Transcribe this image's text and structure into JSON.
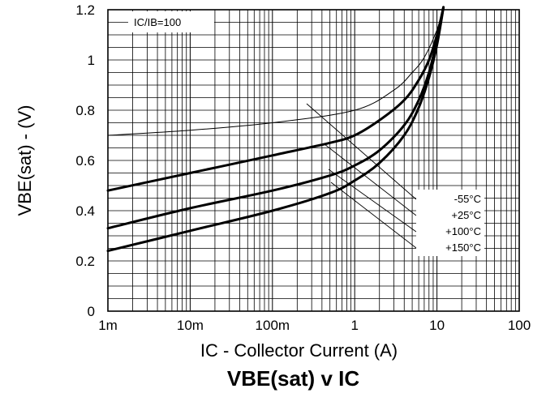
{
  "chart_data": {
    "type": "line",
    "title": "VBE(sat) v IC",
    "xlabel": "IC - Collector Current (A)",
    "ylabel": "VBE(sat) - (V)",
    "x_scale": "log",
    "xlim": [
      0.001,
      100
    ],
    "ylim": [
      0,
      1.2
    ],
    "x_tick_labels": [
      {
        "value": 0.001,
        "label": "1m"
      },
      {
        "value": 0.01,
        "label": "10m"
      },
      {
        "value": 0.1,
        "label": "100m"
      },
      {
        "value": 1,
        "label": "1"
      },
      {
        "value": 10,
        "label": "10"
      },
      {
        "value": 100,
        "label": "100"
      }
    ],
    "y_tick_labels": [
      {
        "value": 0,
        "label": "0"
      },
      {
        "value": 0.2,
        "label": "0.2"
      },
      {
        "value": 0.4,
        "label": "0.4"
      },
      {
        "value": 0.6,
        "label": "0.6"
      },
      {
        "value": 0.8,
        "label": "0.8"
      },
      {
        "value": 1.0,
        "label": "1"
      },
      {
        "value": 1.2,
        "label": "1.2"
      }
    ],
    "grid": true,
    "annotation": "IC/IB=100",
    "legend_entries": [
      "-55°C",
      "+25°C",
      "+100°C",
      "+150°C"
    ],
    "series": [
      {
        "name": "-55°C",
        "line": "thin",
        "x": [
          0.001,
          0.01,
          0.1,
          1,
          3,
          5,
          7,
          10,
          12
        ],
        "y": [
          0.7,
          0.72,
          0.75,
          0.8,
          0.88,
          0.95,
          1.01,
          1.12,
          1.21
        ]
      },
      {
        "name": "+25°C",
        "line": "thick",
        "x": [
          0.001,
          0.01,
          0.1,
          0.5,
          1,
          2,
          4,
          6,
          8,
          10,
          12
        ],
        "y": [
          0.48,
          0.55,
          0.62,
          0.67,
          0.7,
          0.76,
          0.84,
          0.92,
          1.0,
          1.1,
          1.21
        ]
      },
      {
        "name": "+100°C",
        "line": "thick",
        "x": [
          0.001,
          0.01,
          0.1,
          0.5,
          1,
          2,
          4,
          6,
          8,
          10,
          12
        ],
        "y": [
          0.33,
          0.41,
          0.48,
          0.54,
          0.58,
          0.64,
          0.74,
          0.84,
          0.95,
          1.08,
          1.21
        ]
      },
      {
        "name": "+150°C",
        "line": "thick",
        "x": [
          0.001,
          0.01,
          0.1,
          0.5,
          1,
          2,
          4,
          6,
          8,
          10,
          12
        ],
        "y": [
          0.24,
          0.32,
          0.4,
          0.47,
          0.52,
          0.59,
          0.7,
          0.81,
          0.93,
          1.06,
          1.21
        ]
      }
    ]
  }
}
